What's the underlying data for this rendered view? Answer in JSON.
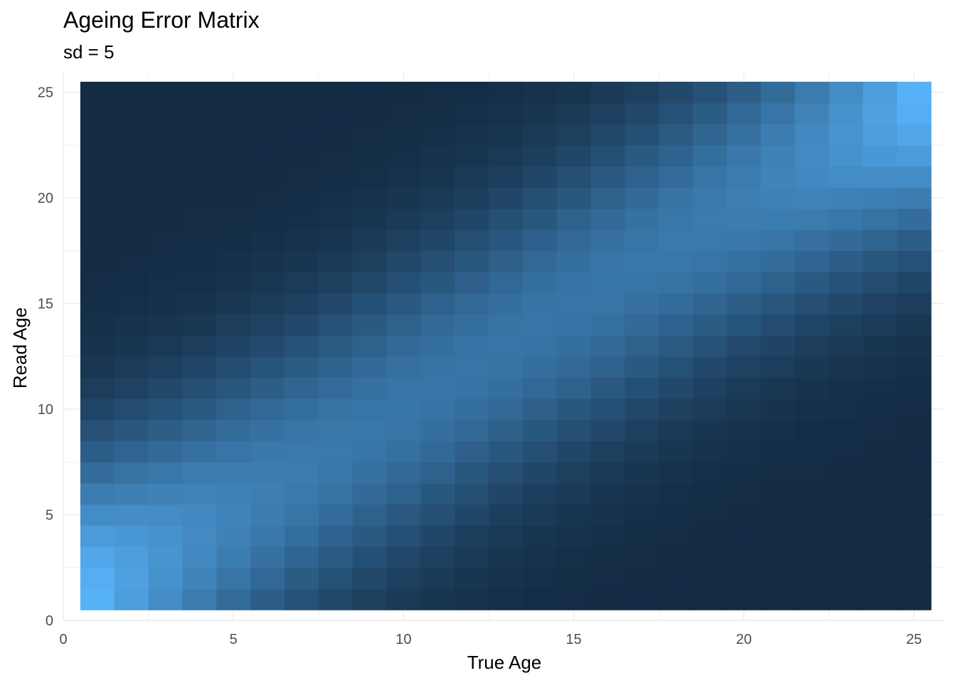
{
  "chart_data": {
    "type": "heatmap",
    "title": "Ageing Error Matrix",
    "subtitle": "sd = 5",
    "xlabel": "True Age",
    "ylabel": "Read Age",
    "x": [
      1,
      2,
      3,
      4,
      5,
      6,
      7,
      8,
      9,
      10,
      11,
      12,
      13,
      14,
      15,
      16,
      17,
      18,
      19,
      20,
      21,
      22,
      23,
      24,
      25
    ],
    "y": [
      1,
      2,
      3,
      4,
      5,
      6,
      7,
      8,
      9,
      10,
      11,
      12,
      13,
      14,
      15,
      16,
      17,
      18,
      19,
      20,
      21,
      22,
      23,
      24,
      25
    ],
    "value_description": "probability of read age given true age, normal with sd = 5 truncated to 1..25",
    "sd": 5,
    "xlim": [
      0,
      25.9
    ],
    "ylim": [
      0,
      25.9
    ],
    "x_ticks": [
      0,
      5,
      10,
      15,
      20,
      25
    ],
    "y_ticks": [
      0,
      5,
      10,
      15,
      20,
      25
    ],
    "grid": true,
    "legend": "none",
    "colors": {
      "low": "#132B43",
      "high": "#56B1F7",
      "grid": "#ebebeb"
    }
  }
}
